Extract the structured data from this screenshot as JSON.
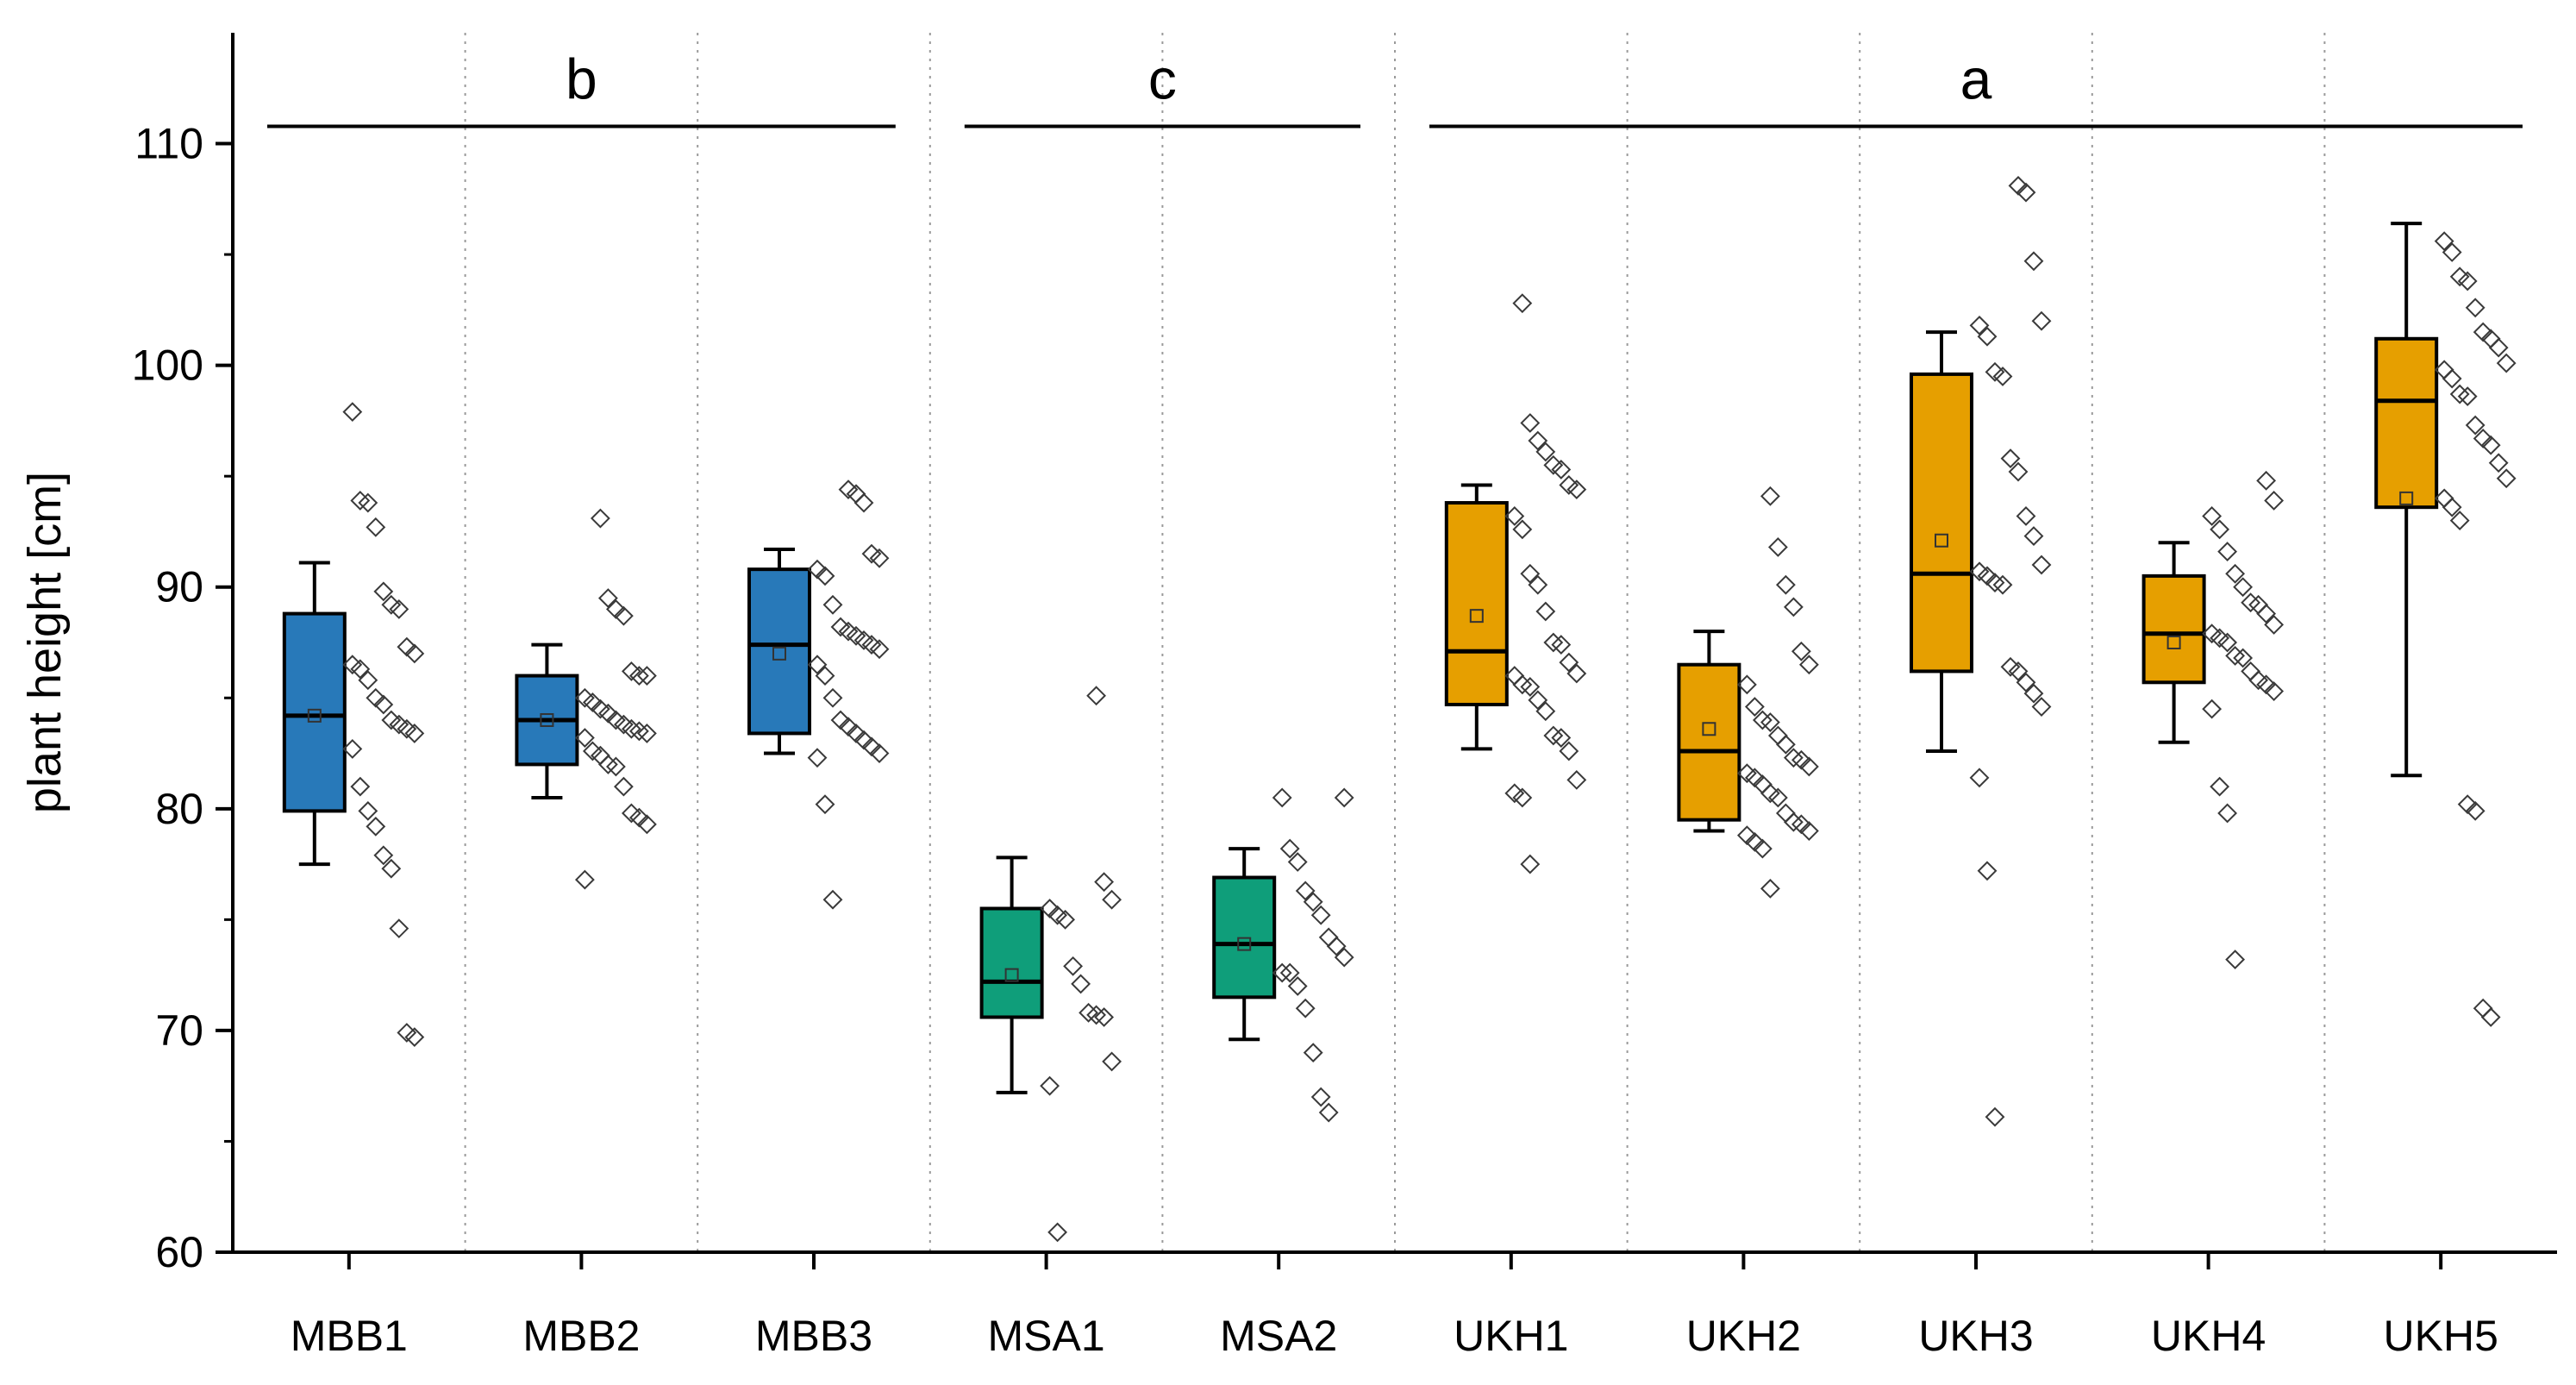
{
  "chart_data": {
    "type": "box",
    "ylabel": "plant height [cm]",
    "ylim": [
      60,
      115
    ],
    "yticks": [
      60,
      70,
      80,
      90,
      100,
      110
    ],
    "grid": "vertical dotted separators between groups",
    "colors": {
      "MBB": "#2879b9",
      "MSA": "#0f9e7a",
      "UKH": "#e69f00"
    },
    "categories": [
      "MBB1",
      "MBB2",
      "MBB3",
      "MSA1",
      "MSA2",
      "UKH1",
      "UKH2",
      "UKH3",
      "UKH4",
      "UKH5"
    ],
    "boxes": [
      {
        "name": "MBB1",
        "group": "MBB",
        "whisker_low": 77.5,
        "q1": 79.9,
        "median": 84.2,
        "q3": 88.8,
        "whisker_high": 91.1,
        "mean": 84.2
      },
      {
        "name": "MBB2",
        "group": "MBB",
        "whisker_low": 80.5,
        "q1": 82.0,
        "median": 84.0,
        "q3": 86.0,
        "whisker_high": 87.4,
        "mean": 84.0
      },
      {
        "name": "MBB3",
        "group": "MBB",
        "whisker_low": 82.5,
        "q1": 83.4,
        "median": 87.4,
        "q3": 90.8,
        "whisker_high": 91.7,
        "mean": 87.0
      },
      {
        "name": "MSA1",
        "group": "MSA",
        "whisker_low": 67.2,
        "q1": 70.6,
        "median": 72.2,
        "q3": 75.5,
        "whisker_high": 77.8,
        "mean": 72.5
      },
      {
        "name": "MSA2",
        "group": "MSA",
        "whisker_low": 69.6,
        "q1": 71.5,
        "median": 73.9,
        "q3": 76.9,
        "whisker_high": 78.2,
        "mean": 73.9
      },
      {
        "name": "UKH1",
        "group": "UKH",
        "whisker_low": 82.7,
        "q1": 84.7,
        "median": 87.1,
        "q3": 93.8,
        "whisker_high": 94.6,
        "mean": 88.7
      },
      {
        "name": "UKH2",
        "group": "UKH",
        "whisker_low": 79.0,
        "q1": 79.5,
        "median": 82.6,
        "q3": 86.5,
        "whisker_high": 88.0,
        "mean": 83.6
      },
      {
        "name": "UKH3",
        "group": "UKH",
        "whisker_low": 82.6,
        "q1": 86.2,
        "median": 90.6,
        "q3": 99.6,
        "whisker_high": 101.5,
        "mean": 92.1
      },
      {
        "name": "UKH4",
        "group": "UKH",
        "whisker_low": 83.0,
        "q1": 85.7,
        "median": 87.9,
        "q3": 90.5,
        "whisker_high": 92.0,
        "mean": 87.5
      },
      {
        "name": "UKH5",
        "group": "UKH",
        "whisker_low": 81.5,
        "q1": 93.6,
        "median": 98.4,
        "q3": 101.2,
        "whisker_high": 106.4,
        "mean": 94.0
      }
    ],
    "points": [
      [
        97.9,
        93.9,
        93.8,
        92.7,
        89.8,
        89.2,
        89.0,
        87.3,
        87.0,
        86.5,
        86.3,
        85.8,
        85.0,
        84.7,
        84.0,
        83.8,
        83.6,
        83.4,
        82.7,
        81.0,
        79.9,
        79.2,
        77.9,
        77.3,
        74.6,
        69.9,
        69.7
      ],
      [
        93.1,
        89.5,
        89.0,
        88.7,
        86.2,
        86.0,
        86.0,
        85.0,
        84.8,
        84.5,
        84.3,
        84.0,
        83.8,
        83.6,
        83.5,
        83.4,
        83.2,
        82.6,
        82.4,
        82.0,
        81.9,
        81.0,
        79.8,
        79.6,
        79.3,
        76.8
      ],
      [
        94.4,
        94.2,
        93.8,
        91.5,
        91.3,
        90.8,
        90.5,
        89.2,
        88.2,
        88.0,
        87.8,
        87.6,
        87.4,
        87.2,
        86.5,
        86.0,
        85.0,
        84.0,
        83.7,
        83.4,
        83.1,
        82.8,
        82.5,
        82.3,
        80.2,
        75.9
      ],
      [
        85.1,
        76.7,
        75.9,
        75.5,
        75.2,
        75.0,
        72.9,
        72.1,
        70.8,
        70.7,
        70.6,
        68.6,
        67.5,
        60.9
      ],
      [
        80.5,
        80.5,
        78.2,
        77.6,
        76.3,
        75.8,
        75.2,
        74.2,
        73.8,
        73.3,
        72.6,
        72.6,
        72.0,
        71.0,
        69.0,
        67.0,
        66.3
      ],
      [
        102.8,
        97.4,
        96.6,
        96.1,
        95.5,
        95.3,
        94.6,
        94.4,
        93.2,
        92.6,
        90.6,
        90.1,
        88.9,
        87.5,
        87.4,
        86.6,
        86.1,
        86.0,
        85.6,
        85.5,
        84.9,
        84.4,
        83.3,
        83.2,
        82.6,
        81.3,
        80.7,
        80.5,
        77.5
      ],
      [
        94.1,
        91.8,
        90.1,
        89.1,
        87.1,
        86.5,
        85.6,
        84.6,
        84.0,
        83.9,
        83.3,
        82.9,
        82.3,
        82.2,
        81.9,
        81.6,
        81.4,
        81.1,
        80.7,
        80.5,
        79.8,
        79.4,
        79.3,
        79.0,
        78.8,
        78.5,
        78.2,
        76.4
      ],
      [
        108.1,
        107.8,
        104.7,
        102.0,
        101.8,
        101.3,
        99.7,
        99.5,
        95.8,
        95.2,
        93.2,
        92.3,
        91.0,
        90.7,
        90.5,
        90.2,
        90.1,
        86.4,
        86.2,
        85.7,
        85.2,
        84.6,
        81.4,
        77.2,
        66.1
      ],
      [
        94.8,
        93.9,
        93.2,
        92.6,
        91.6,
        90.6,
        90.0,
        89.3,
        89.2,
        88.8,
        88.3,
        87.9,
        87.7,
        87.5,
        86.9,
        86.8,
        86.2,
        85.8,
        85.6,
        85.3,
        84.5,
        81.0,
        79.8,
        73.2
      ],
      [
        105.6,
        105.1,
        104.0,
        103.8,
        102.6,
        101.5,
        101.2,
        100.8,
        100.1,
        99.8,
        99.4,
        98.7,
        98.6,
        97.3,
        96.7,
        96.4,
        95.6,
        94.9,
        94.0,
        93.6,
        93.0,
        80.2,
        79.9,
        71.0,
        70.6
      ]
    ],
    "significance_groups": [
      {
        "letter": "b",
        "from": "MBB1",
        "to": "MBB3"
      },
      {
        "letter": "c",
        "from": "MSA1",
        "to": "MSA2"
      },
      {
        "letter": "a",
        "from": "UKH1",
        "to": "UKH5"
      }
    ]
  }
}
